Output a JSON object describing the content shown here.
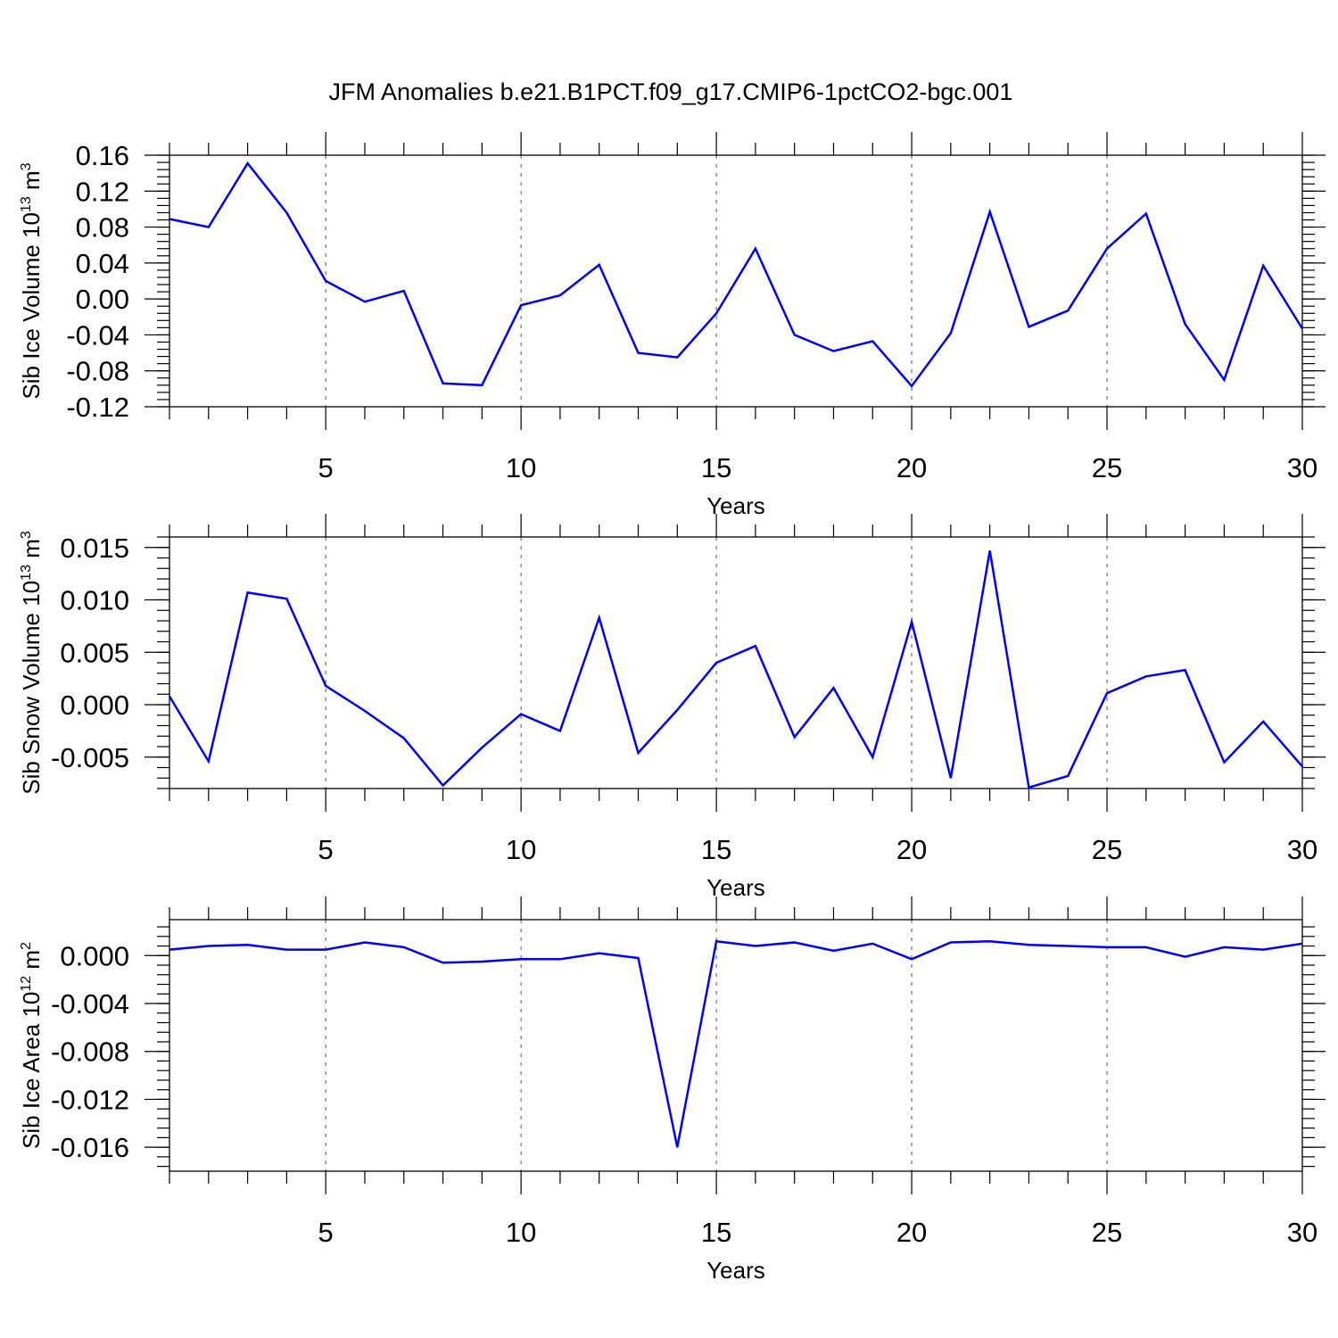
{
  "figure": {
    "title": "JFM Anomalies b.e21.B1PCT.f09_g17.CMIP6-1pctCO2-bgc.001"
  },
  "chart_data": [
    {
      "type": "line",
      "title": "JFM Anomalies b.e21.B1PCT.f09_g17.CMIP6-1pctCO2-bgc.001",
      "xlabel": "Years",
      "ylabel": "Sib Ice Volume 10",
      "ylabel_sup": "13",
      "ylabel_unit": " m",
      "ylabel_unit_sup": "3",
      "xlim": [
        1,
        30
      ],
      "ylim": [
        -0.12,
        0.16
      ],
      "xticks": [
        5,
        10,
        15,
        20,
        25,
        30
      ],
      "yticks": [
        -0.12,
        -0.08,
        -0.04,
        0.0,
        0.04,
        0.08,
        0.12,
        0.16
      ],
      "ytick_labels": [
        "-0.12",
        "-0.08",
        "-0.04",
        "0.00",
        "0.04",
        "0.08",
        "0.12",
        "0.16"
      ],
      "x_minor_step": 1,
      "y_minor_step": 0.008,
      "grid": "vertical dashed at major x ticks",
      "color": "#0000ff",
      "x": [
        1,
        2,
        3,
        4,
        5,
        6,
        7,
        8,
        9,
        10,
        11,
        12,
        13,
        14,
        15,
        16,
        17,
        18,
        19,
        20,
        21,
        22,
        23,
        24,
        25,
        26,
        27,
        28,
        29,
        30
      ],
      "values": [
        0.089,
        0.08,
        0.151,
        0.096,
        0.02,
        -0.003,
        0.009,
        -0.094,
        -0.096,
        -0.007,
        0.004,
        0.038,
        -0.06,
        -0.065,
        -0.016,
        0.056,
        -0.04,
        -0.058,
        -0.047,
        -0.097,
        -0.038,
        0.097,
        -0.031,
        -0.013,
        0.056,
        0.095,
        -0.028,
        -0.09,
        0.037,
        -0.033
      ]
    },
    {
      "type": "line",
      "xlabel": "Years",
      "ylabel": "Sib Snow Volume 10",
      "ylabel_sup": "13",
      "ylabel_unit": " m",
      "ylabel_unit_sup": "3",
      "xlim": [
        1,
        30
      ],
      "ylim": [
        -0.008,
        0.016
      ],
      "xticks": [
        5,
        10,
        15,
        20,
        25,
        30
      ],
      "yticks": [
        -0.005,
        0.0,
        0.005,
        0.01,
        0.015
      ],
      "ytick_labels": [
        "-0.005",
        "0.000",
        "0.005",
        "0.010",
        "0.015"
      ],
      "x_minor_step": 1,
      "y_minor_step": 0.001,
      "grid": "vertical dashed at major x ticks",
      "color": "#0000ff",
      "x": [
        1,
        2,
        3,
        4,
        5,
        6,
        7,
        8,
        9,
        10,
        11,
        12,
        13,
        14,
        15,
        16,
        17,
        18,
        19,
        20,
        21,
        22,
        23,
        24,
        25,
        26,
        27,
        28,
        29,
        30
      ],
      "values": [
        0.0008,
        -0.0054,
        0.0107,
        0.0101,
        0.0018,
        -0.0006,
        -0.0032,
        -0.0077,
        -0.0041,
        -0.0009,
        -0.0025,
        0.0083,
        -0.0046,
        -0.0005,
        0.004,
        0.0056,
        -0.0031,
        0.0016,
        -0.005,
        0.0079,
        -0.007,
        0.0147,
        -0.0079,
        -0.0068,
        0.0011,
        0.0027,
        0.0033,
        -0.0055,
        -0.0016,
        -0.0059
      ]
    },
    {
      "type": "line",
      "xlabel": "Years",
      "ylabel": "Sib Ice Area 10",
      "ylabel_sup": "12",
      "ylabel_unit": " m",
      "ylabel_unit_sup": "2",
      "xlim": [
        1,
        30
      ],
      "ylim": [
        -0.018,
        0.003
      ],
      "xticks": [
        5,
        10,
        15,
        20,
        25,
        30
      ],
      "yticks": [
        -0.016,
        -0.012,
        -0.008,
        -0.004,
        0.0
      ],
      "ytick_labels": [
        "-0.016",
        "-0.012",
        "-0.008",
        "-0.004",
        "0.000"
      ],
      "x_minor_step": 1,
      "y_minor_step": 0.0008,
      "grid": "vertical dashed at major x ticks",
      "color": "#0000ff",
      "x": [
        1,
        2,
        3,
        4,
        5,
        6,
        7,
        8,
        9,
        10,
        11,
        12,
        13,
        14,
        15,
        16,
        17,
        18,
        19,
        20,
        21,
        22,
        23,
        24,
        25,
        26,
        27,
        28,
        29,
        30
      ],
      "values": [
        0.0005,
        0.0008,
        0.0009,
        0.0005,
        0.0005,
        0.0011,
        0.0007,
        -0.0006,
        -0.0005,
        -0.0003,
        -0.0003,
        0.0002,
        -0.0002,
        -0.016,
        0.0012,
        0.0008,
        0.0011,
        0.0004,
        0.001,
        -0.0003,
        0.0011,
        0.0012,
        0.0009,
        0.0008,
        0.0007,
        0.0007,
        -0.0001,
        0.0007,
        0.0005,
        0.001
      ]
    }
  ]
}
